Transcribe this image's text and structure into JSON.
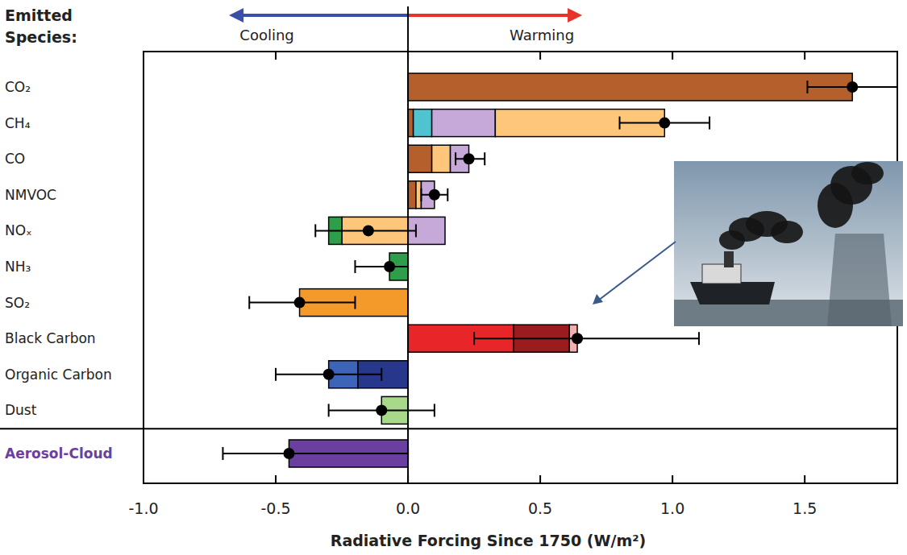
{
  "chart_data": {
    "type": "bar",
    "orientation": "horizontal",
    "stacked": true,
    "ylabel": "Emitted Species:",
    "xlabel": "Radiative Forcing Since 1750 (W/m²)",
    "annotations": [
      {
        "text": "Cooling"
      },
      {
        "text": "Warming"
      }
    ],
    "categories": [
      "CO₂",
      "CH₄",
      "CO",
      "NMVOC",
      "NOₓ",
      "NH₃",
      "SO₂",
      "Black Carbon",
      "Organic Carbon",
      "Dust",
      "Aerosol-Cloud"
    ],
    "segments": [
      [
        {
          "value": 1.68,
          "color": "#b5602c"
        }
      ],
      [
        {
          "value": 0.02,
          "color": "#b5602c"
        },
        {
          "value": 0.07,
          "color": "#4fc3cf"
        },
        {
          "value": 0.24,
          "color": "#c6a9d9"
        },
        {
          "value": 0.64,
          "color": "#fdc67a"
        }
      ],
      [
        {
          "value": 0.09,
          "color": "#b5602c"
        },
        {
          "value": 0.07,
          "color": "#fdc67a"
        },
        {
          "value": 0.07,
          "color": "#c6a9d9"
        }
      ],
      [
        {
          "value": 0.03,
          "color": "#b5602c"
        },
        {
          "value": 0.02,
          "color": "#fdc67a"
        },
        {
          "value": 0.05,
          "color": "#c6a9d9"
        }
      ],
      [
        {
          "value": 0.14,
          "color": "#c6a9d9"
        },
        {
          "value": -0.25,
          "color": "#fdc67a"
        },
        {
          "value": -0.05,
          "color": "#2e9e4a"
        }
      ],
      [
        {
          "value": -0.07,
          "color": "#2e9e4a"
        }
      ],
      [
        {
          "value": -0.41,
          "color": "#f39a2b"
        }
      ],
      [
        {
          "value": 0.4,
          "color": "#e8262a"
        },
        {
          "value": 0.21,
          "color": "#9b1c1f"
        },
        {
          "value": 0.03,
          "color": "#f3aeb0"
        }
      ],
      [
        {
          "value": -0.19,
          "color": "#27388c"
        },
        {
          "value": -0.11,
          "color": "#3d64b8"
        }
      ],
      [
        {
          "value": -0.1,
          "color": "#a8d88a"
        }
      ],
      [
        {
          "value": -0.45,
          "color": "#6a3fa0"
        }
      ]
    ],
    "values": [
      1.68,
      0.97,
      0.23,
      0.1,
      -0.15,
      -0.07,
      -0.41,
      0.64,
      -0.3,
      -0.1,
      -0.45
    ],
    "error_low": [
      1.51,
      0.8,
      0.18,
      0.05,
      -0.35,
      -0.2,
      -0.6,
      0.25,
      -0.5,
      -0.3,
      -0.7
    ],
    "error_high": [
      1.85,
      1.14,
      0.29,
      0.15,
      0.03,
      0.0,
      -0.2,
      1.1,
      -0.1,
      0.1,
      0.0
    ],
    "xlim": [
      -1.0,
      1.85
    ],
    "xticks": [
      {
        "value": -1.0,
        "label": "-1.0"
      },
      {
        "value": -0.5,
        "label": "-0.5"
      },
      {
        "value": 0.0,
        "label": "0.0"
      },
      {
        "value": 0.5,
        "label": "0.5"
      },
      {
        "value": 1.0,
        "label": "1.0"
      },
      {
        "value": 1.5,
        "label": "1.5"
      }
    ]
  }
}
